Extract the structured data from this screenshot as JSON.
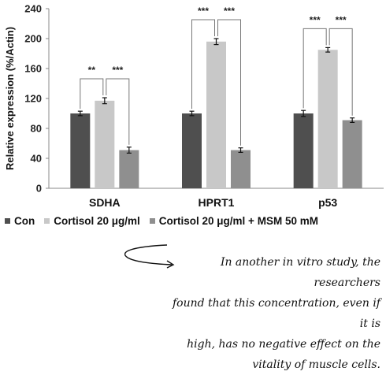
{
  "chart_data": {
    "type": "bar",
    "title": "",
    "xlabel": "",
    "ylabel": "Relative expression (%/Actin)",
    "ylim": [
      0,
      240
    ],
    "yticks": [
      0,
      40,
      80,
      120,
      160,
      200,
      240
    ],
    "categories": [
      "SDHA",
      "HPRT1",
      "p53"
    ],
    "series": [
      {
        "name": "Con",
        "color": "#4f4f4f",
        "values": [
          100,
          100,
          100
        ],
        "errors": [
          3,
          3,
          4
        ]
      },
      {
        "name": "Cortisol 20 μg/ml",
        "color": "#c8c8c8",
        "values": [
          117,
          196,
          185
        ],
        "errors": [
          4,
          4,
          3
        ]
      },
      {
        "name": "Cortisol 20 μg/ml + MSM 50 mM",
        "color": "#8f8f8f",
        "values": [
          51,
          51,
          91
        ],
        "errors": [
          4,
          3,
          3
        ]
      }
    ],
    "significance": [
      {
        "category": "SDHA",
        "pair": [
          0,
          1
        ],
        "label": "**"
      },
      {
        "category": "SDHA",
        "pair": [
          1,
          2
        ],
        "label": "***"
      },
      {
        "category": "HPRT1",
        "pair": [
          0,
          1
        ],
        "label": "***"
      },
      {
        "category": "HPRT1",
        "pair": [
          1,
          2
        ],
        "label": "***"
      },
      {
        "category": "p53",
        "pair": [
          0,
          1
        ],
        "label": "***"
      },
      {
        "category": "p53",
        "pair": [
          1,
          2
        ],
        "label": "***"
      }
    ],
    "legend_position": "bottom",
    "grid": false
  },
  "annotation": {
    "lines": [
      "In another in vitro study, the researchers",
      "found that this concentration, even if it is",
      "high, has no negative effect on the",
      "vitality of muscle cells."
    ]
  }
}
